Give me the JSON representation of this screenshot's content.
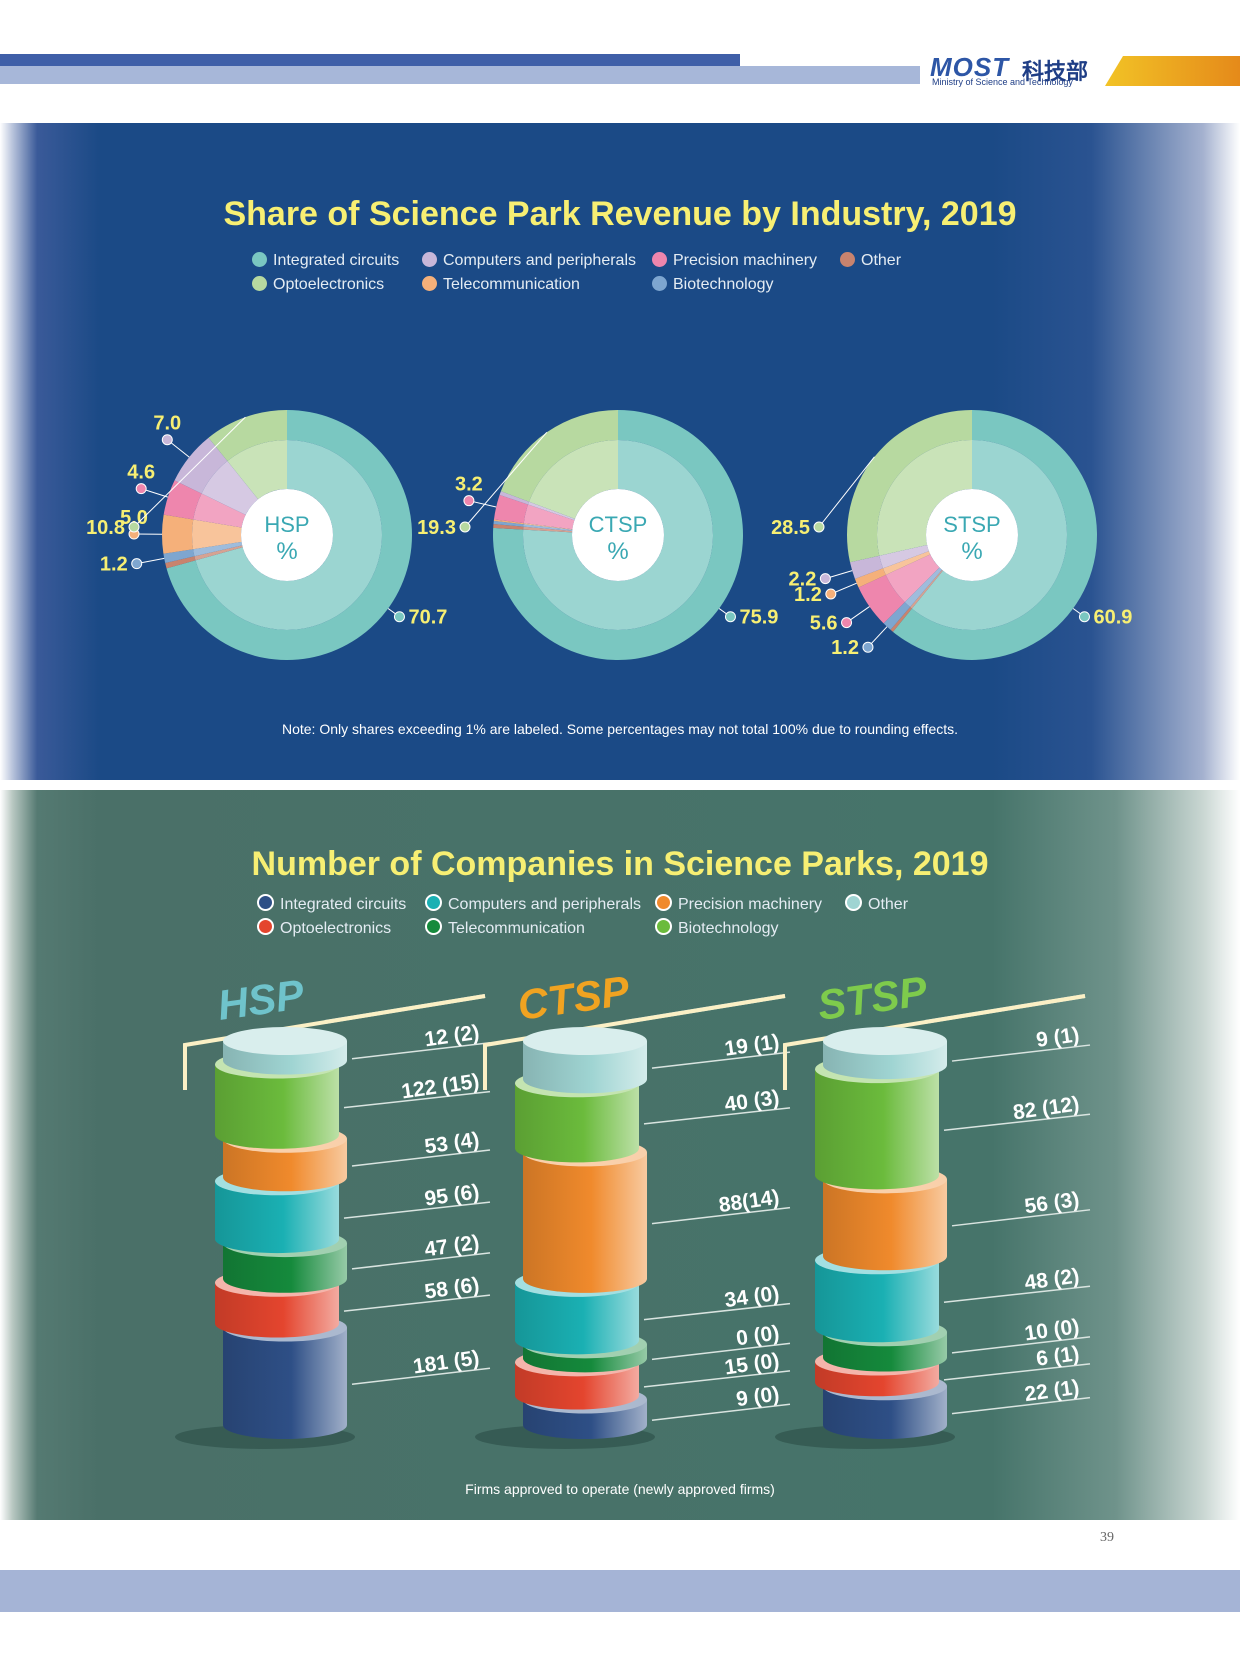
{
  "header": {
    "logo_text": "MOST",
    "logo_chinese": "科技部",
    "logo_subtitle": "Ministry of Science and Technology"
  },
  "colors": {
    "integrated_circuits": "#7ac7c1",
    "optoelectronics": "#b7d9a0",
    "computers_peripherals": "#c8b7d9",
    "telecommunication": "#f5b07a",
    "precision_machinery": "#ee86ad",
    "biotechnology": "#7ea6d0",
    "other": "#c8836e"
  },
  "revenue_section": {
    "title": "Share of Science Park Revenue by Industry, 2019",
    "legend": [
      {
        "label": "Integrated circuits",
        "color": "#7ac7c1"
      },
      {
        "label": "Computers and peripherals",
        "color": "#c8b7d9"
      },
      {
        "label": "Precision machinery",
        "color": "#ee86ad"
      },
      {
        "label": "Other",
        "color": "#c8836e"
      },
      {
        "label": "Optoelectronics",
        "color": "#b7d9a0"
      },
      {
        "label": "Telecommunication",
        "color": "#f5b07a"
      },
      {
        "label": "Biotechnology",
        "color": "#7ea6d0"
      }
    ],
    "note": "Note: Only shares exceeding 1% are labeled. Some percentages may not total 100% due to rounding effects."
  },
  "companies_section": {
    "title": "Number of Companies in Science Parks, 2019",
    "legend": [
      {
        "label": "Integrated circuits",
        "color": "#2e4f86"
      },
      {
        "label": "Computers and peripherals",
        "color": "#1ab0b3"
      },
      {
        "label": "Precision machinery",
        "color": "#f08a2c"
      },
      {
        "label": "Other",
        "color": "#9fd4d2"
      },
      {
        "label": "Optoelectronics",
        "color": "#e4452e"
      },
      {
        "label": "Telecommunication",
        "color": "#158a3c"
      },
      {
        "label": "Biotechnology",
        "color": "#6bbb3c"
      }
    ],
    "footnote": "Firms approved to operate (newly approved firms)"
  },
  "chart_data": [
    {
      "type": "pie",
      "center_label": "HSP",
      "unit": "%",
      "slices": [
        {
          "category": "Integrated circuits",
          "value": 70.7,
          "label": "70.7"
        },
        {
          "category": "Optoelectronics",
          "value": 10.8,
          "label": "10.8"
        },
        {
          "category": "Computers and peripherals",
          "value": 7.0,
          "label": "7.0"
        },
        {
          "category": "Precision machinery",
          "value": 4.6,
          "label": "4.6"
        },
        {
          "category": "Telecommunication",
          "value": 5.0,
          "label": "5.0"
        },
        {
          "category": "Biotechnology",
          "value": 1.2,
          "label": "1.2"
        },
        {
          "category": "Other",
          "value": 0.7,
          "label": ""
        }
      ]
    },
    {
      "type": "pie",
      "center_label": "CTSP",
      "unit": "%",
      "slices": [
        {
          "category": "Integrated circuits",
          "value": 75.9,
          "label": "75.9"
        },
        {
          "category": "Optoelectronics",
          "value": 19.3,
          "label": "19.3"
        },
        {
          "category": "Computers and peripherals",
          "value": 0.5,
          "label": ""
        },
        {
          "category": "Precision machinery",
          "value": 3.2,
          "label": "3.2"
        },
        {
          "category": "Telecommunication",
          "value": 0.2,
          "label": ""
        },
        {
          "category": "Biotechnology",
          "value": 0.4,
          "label": ""
        },
        {
          "category": "Other",
          "value": 0.5,
          "label": ""
        }
      ]
    },
    {
      "type": "pie",
      "center_label": "STSP",
      "unit": "%",
      "slices": [
        {
          "category": "Integrated circuits",
          "value": 60.9,
          "label": "60.9"
        },
        {
          "category": "Optoelectronics",
          "value": 28.5,
          "label": "28.5"
        },
        {
          "category": "Computers and peripherals",
          "value": 2.2,
          "label": "2.2"
        },
        {
          "category": "Telecommunication",
          "value": 1.2,
          "label": "1.2"
        },
        {
          "category": "Precision machinery",
          "value": 5.6,
          "label": "5.6"
        },
        {
          "category": "Biotechnology",
          "value": 1.2,
          "label": "1.2"
        },
        {
          "category": "Other",
          "value": 0.4,
          "label": ""
        }
      ]
    },
    {
      "type": "bar",
      "park": "HSP",
      "title_color": "#6fc3cb",
      "segments": [
        {
          "category": "Other",
          "value": 12,
          "new": 2,
          "label": "12 (2)"
        },
        {
          "category": "Biotechnology",
          "value": 122,
          "new": 15,
          "label": "122 (15)"
        },
        {
          "category": "Precision machinery",
          "value": 53,
          "new": 4,
          "label": "53 (4)"
        },
        {
          "category": "Computers and peripherals",
          "value": 95,
          "new": 6,
          "label": "95 (6)"
        },
        {
          "category": "Telecommunication",
          "value": 47,
          "new": 2,
          "label": "47 (2)"
        },
        {
          "category": "Optoelectronics",
          "value": 58,
          "new": 6,
          "label": "58 (6)"
        },
        {
          "category": "Integrated circuits",
          "value": 181,
          "new": 5,
          "label": "181 (5)"
        }
      ]
    },
    {
      "type": "bar",
      "park": "CTSP",
      "title_color": "#f0a321",
      "segments": [
        {
          "category": "Other",
          "value": 19,
          "new": 1,
          "label": "19 (1)"
        },
        {
          "category": "Biotechnology",
          "value": 40,
          "new": 3,
          "label": "40 (3)"
        },
        {
          "category": "Precision machinery",
          "value": 88,
          "new": 14,
          "label": "88(14)"
        },
        {
          "category": "Computers and peripherals",
          "value": 34,
          "new": 0,
          "label": "34 (0)"
        },
        {
          "category": "Telecommunication",
          "value": 0,
          "new": 0,
          "label": "0 (0)"
        },
        {
          "category": "Optoelectronics",
          "value": 15,
          "new": 0,
          "label": "15 (0)"
        },
        {
          "category": "Integrated circuits",
          "value": 9,
          "new": 0,
          "label": "9 (0)"
        }
      ]
    },
    {
      "type": "bar",
      "park": "STSP",
      "title_color": "#7ecb4c",
      "segments": [
        {
          "category": "Other",
          "value": 9,
          "new": 1,
          "label": "9 (1)"
        },
        {
          "category": "Biotechnology",
          "value": 82,
          "new": 12,
          "label": "82 (12)"
        },
        {
          "category": "Precision machinery",
          "value": 56,
          "new": 3,
          "label": "56 (3)"
        },
        {
          "category": "Computers and peripherals",
          "value": 48,
          "new": 2,
          "label": "48 (2)"
        },
        {
          "category": "Telecommunication",
          "value": 10,
          "new": 0,
          "label": "10 (0)"
        },
        {
          "category": "Optoelectronics",
          "value": 6,
          "new": 1,
          "label": "6 (1)"
        },
        {
          "category": "Integrated circuits",
          "value": 22,
          "new": 1,
          "label": "22 (1)"
        }
      ]
    }
  ],
  "page_number": "39"
}
